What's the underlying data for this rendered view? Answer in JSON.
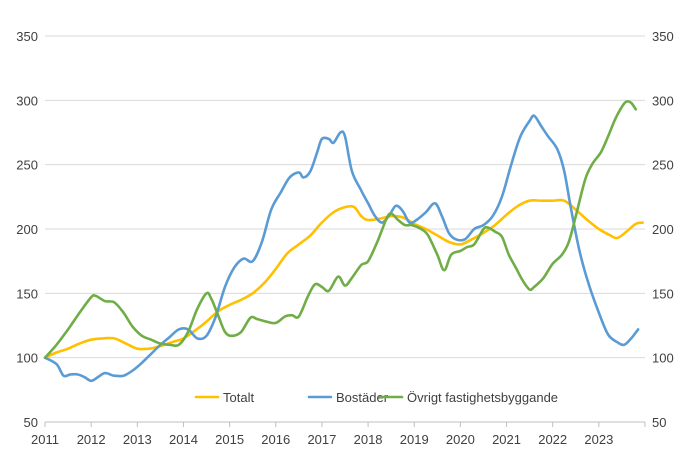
{
  "chart_data": {
    "type": "line",
    "title": "",
    "xlabel": "",
    "ylabel": "",
    "ylim": [
      50,
      350
    ],
    "yticks": [
      50,
      100,
      150,
      200,
      250,
      300,
      350
    ],
    "xlim": [
      2011,
      2024
    ],
    "xticks": [
      "2011",
      "2012",
      "2013",
      "2014",
      "2015",
      "2016",
      "2017",
      "2018",
      "2019",
      "2020",
      "2021",
      "2022",
      "2023"
    ],
    "grid": true,
    "legend_position": "bottom",
    "series": [
      {
        "name": "Totalt",
        "color": "#ffc000",
        "points": [
          [
            2011.0,
            100
          ],
          [
            2011.25,
            104
          ],
          [
            2011.5,
            107
          ],
          [
            2011.75,
            111
          ],
          [
            2012.0,
            114
          ],
          [
            2012.25,
            115
          ],
          [
            2012.5,
            115
          ],
          [
            2012.75,
            111
          ],
          [
            2013.0,
            107
          ],
          [
            2013.25,
            107
          ],
          [
            2013.5,
            109
          ],
          [
            2013.75,
            112
          ],
          [
            2014.0,
            115
          ],
          [
            2014.25,
            121
          ],
          [
            2014.5,
            128
          ],
          [
            2014.75,
            136
          ],
          [
            2015.0,
            141
          ],
          [
            2015.25,
            145
          ],
          [
            2015.5,
            150
          ],
          [
            2015.75,
            158
          ],
          [
            2016.0,
            169
          ],
          [
            2016.25,
            181
          ],
          [
            2016.5,
            188
          ],
          [
            2016.75,
            195
          ],
          [
            2017.0,
            205
          ],
          [
            2017.25,
            213
          ],
          [
            2017.5,
            217
          ],
          [
            2017.7,
            217
          ],
          [
            2017.85,
            210
          ],
          [
            2018.0,
            207
          ],
          [
            2018.25,
            208
          ],
          [
            2018.5,
            210
          ],
          [
            2018.75,
            209
          ],
          [
            2019.0,
            204
          ],
          [
            2019.25,
            200
          ],
          [
            2019.5,
            195
          ],
          [
            2019.75,
            190
          ],
          [
            2020.0,
            188
          ],
          [
            2020.25,
            192
          ],
          [
            2020.5,
            197
          ],
          [
            2020.75,
            203
          ],
          [
            2021.0,
            211
          ],
          [
            2021.25,
            218
          ],
          [
            2021.5,
            222
          ],
          [
            2021.75,
            222
          ],
          [
            2022.0,
            222
          ],
          [
            2022.25,
            222
          ],
          [
            2022.5,
            215
          ],
          [
            2022.75,
            207
          ],
          [
            2023.0,
            200
          ],
          [
            2023.25,
            195
          ],
          [
            2023.4,
            193
          ],
          [
            2023.6,
            198
          ],
          [
            2023.8,
            204
          ],
          [
            2023.95,
            205
          ]
        ]
      },
      {
        "name": "Bostäder",
        "color": "#5b9bd5",
        "points": [
          [
            2011.0,
            100
          ],
          [
            2011.25,
            95
          ],
          [
            2011.4,
            86
          ],
          [
            2011.55,
            87
          ],
          [
            2011.7,
            87
          ],
          [
            2011.85,
            85
          ],
          [
            2012.0,
            82
          ],
          [
            2012.15,
            85
          ],
          [
            2012.3,
            88
          ],
          [
            2012.5,
            86
          ],
          [
            2012.7,
            86
          ],
          [
            2012.9,
            90
          ],
          [
            2013.1,
            96
          ],
          [
            2013.3,
            103
          ],
          [
            2013.5,
            110
          ],
          [
            2013.7,
            116
          ],
          [
            2013.9,
            122
          ],
          [
            2014.1,
            122
          ],
          [
            2014.3,
            115
          ],
          [
            2014.5,
            117
          ],
          [
            2014.7,
            132
          ],
          [
            2014.9,
            155
          ],
          [
            2015.1,
            170
          ],
          [
            2015.3,
            177
          ],
          [
            2015.5,
            175
          ],
          [
            2015.7,
            190
          ],
          [
            2015.9,
            215
          ],
          [
            2016.1,
            228
          ],
          [
            2016.3,
            240
          ],
          [
            2016.5,
            244
          ],
          [
            2016.6,
            240
          ],
          [
            2016.75,
            245
          ],
          [
            2016.9,
            260
          ],
          [
            2017.0,
            270
          ],
          [
            2017.15,
            270
          ],
          [
            2017.25,
            267
          ],
          [
            2017.4,
            275
          ],
          [
            2017.5,
            272
          ],
          [
            2017.65,
            245
          ],
          [
            2017.85,
            230
          ],
          [
            2018.0,
            220
          ],
          [
            2018.15,
            210
          ],
          [
            2018.3,
            205
          ],
          [
            2018.45,
            210
          ],
          [
            2018.6,
            218
          ],
          [
            2018.75,
            214
          ],
          [
            2018.9,
            205
          ],
          [
            2019.05,
            207
          ],
          [
            2019.25,
            213
          ],
          [
            2019.45,
            220
          ],
          [
            2019.6,
            210
          ],
          [
            2019.75,
            197
          ],
          [
            2019.9,
            192
          ],
          [
            2020.1,
            192
          ],
          [
            2020.3,
            200
          ],
          [
            2020.5,
            203
          ],
          [
            2020.7,
            210
          ],
          [
            2020.9,
            225
          ],
          [
            2021.1,
            250
          ],
          [
            2021.3,
            272
          ],
          [
            2021.5,
            284
          ],
          [
            2021.6,
            288
          ],
          [
            2021.75,
            280
          ],
          [
            2021.9,
            272
          ],
          [
            2022.1,
            262
          ],
          [
            2022.25,
            245
          ],
          [
            2022.4,
            215
          ],
          [
            2022.6,
            180
          ],
          [
            2022.8,
            155
          ],
          [
            2023.0,
            135
          ],
          [
            2023.2,
            118
          ],
          [
            2023.4,
            112
          ],
          [
            2023.55,
            110
          ],
          [
            2023.7,
            115
          ],
          [
            2023.85,
            122
          ]
        ]
      },
      {
        "name": "Övrigt fastighetsbyggande",
        "color": "#70ad47",
        "points": [
          [
            2011.0,
            100
          ],
          [
            2011.25,
            110
          ],
          [
            2011.5,
            122
          ],
          [
            2011.75,
            135
          ],
          [
            2012.0,
            147
          ],
          [
            2012.1,
            148
          ],
          [
            2012.3,
            144
          ],
          [
            2012.5,
            143
          ],
          [
            2012.7,
            135
          ],
          [
            2012.9,
            124
          ],
          [
            2013.1,
            117
          ],
          [
            2013.3,
            114
          ],
          [
            2013.5,
            111
          ],
          [
            2013.7,
            110
          ],
          [
            2013.9,
            110
          ],
          [
            2014.1,
            120
          ],
          [
            2014.3,
            138
          ],
          [
            2014.5,
            150
          ],
          [
            2014.6,
            146
          ],
          [
            2014.75,
            133
          ],
          [
            2014.9,
            120
          ],
          [
            2015.05,
            117
          ],
          [
            2015.25,
            120
          ],
          [
            2015.45,
            131
          ],
          [
            2015.6,
            130
          ],
          [
            2015.8,
            128
          ],
          [
            2016.0,
            127
          ],
          [
            2016.2,
            132
          ],
          [
            2016.35,
            133
          ],
          [
            2016.5,
            132
          ],
          [
            2016.7,
            148
          ],
          [
            2016.85,
            157
          ],
          [
            2017.0,
            155
          ],
          [
            2017.15,
            152
          ],
          [
            2017.35,
            163
          ],
          [
            2017.5,
            156
          ],
          [
            2017.65,
            162
          ],
          [
            2017.85,
            172
          ],
          [
            2018.0,
            175
          ],
          [
            2018.2,
            190
          ],
          [
            2018.4,
            208
          ],
          [
            2018.5,
            212
          ],
          [
            2018.65,
            207
          ],
          [
            2018.8,
            203
          ],
          [
            2018.95,
            203
          ],
          [
            2019.15,
            200
          ],
          [
            2019.3,
            195
          ],
          [
            2019.5,
            180
          ],
          [
            2019.65,
            168
          ],
          [
            2019.8,
            180
          ],
          [
            2020.0,
            183
          ],
          [
            2020.15,
            186
          ],
          [
            2020.3,
            188
          ],
          [
            2020.5,
            200
          ],
          [
            2020.6,
            201
          ],
          [
            2020.75,
            198
          ],
          [
            2020.9,
            194
          ],
          [
            2021.05,
            180
          ],
          [
            2021.2,
            170
          ],
          [
            2021.35,
            160
          ],
          [
            2021.5,
            153
          ],
          [
            2021.6,
            155
          ],
          [
            2021.8,
            162
          ],
          [
            2022.0,
            173
          ],
          [
            2022.2,
            180
          ],
          [
            2022.35,
            190
          ],
          [
            2022.5,
            210
          ],
          [
            2022.7,
            238
          ],
          [
            2022.85,
            250
          ],
          [
            2023.05,
            260
          ],
          [
            2023.2,
            272
          ],
          [
            2023.35,
            285
          ],
          [
            2023.5,
            295
          ],
          [
            2023.6,
            299
          ],
          [
            2023.7,
            298
          ],
          [
            2023.8,
            293
          ]
        ]
      }
    ]
  }
}
